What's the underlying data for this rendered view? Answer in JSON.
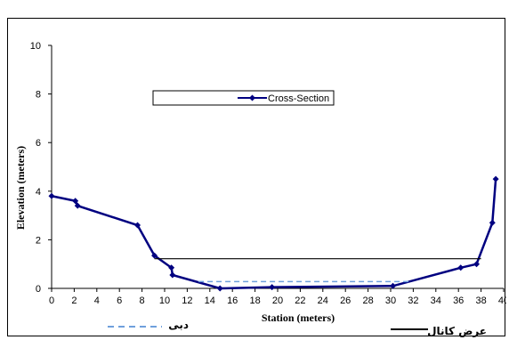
{
  "chart_data": {
    "type": "line",
    "title": "",
    "xlabel": "Station (meters)",
    "ylabel": "Elevation (meters)",
    "xlim": [
      0,
      40
    ],
    "ylim": [
      0,
      10
    ],
    "x_ticks": [
      0,
      2,
      4,
      6,
      8,
      10,
      12,
      14,
      16,
      18,
      20,
      22,
      24,
      26,
      28,
      30,
      32,
      34,
      36,
      38,
      40
    ],
    "y_ticks": [
      0,
      2,
      4,
      6,
      8,
      10
    ],
    "grid": false,
    "series": [
      {
        "name": "Cross-Section",
        "color": "#000080",
        "marker": "diamond",
        "x": [
          0,
          2.1,
          2.3,
          7.6,
          9.1,
          10.6,
          10.7,
          14.9,
          19.5,
          30.2,
          36.2,
          37.6,
          39.0,
          39.3
        ],
        "y": [
          3.8,
          3.6,
          3.4,
          2.6,
          1.35,
          0.85,
          0.55,
          0.0,
          0.05,
          0.1,
          0.85,
          1.0,
          2.7,
          4.5
        ]
      },
      {
        "name": "عرض کانال",
        "color": "#000000",
        "style": "solid",
        "x": [
          9.1,
          38.0
        ],
        "y": [
          1.22,
          1.22
        ]
      },
      {
        "name": "دبی",
        "color": "#6fa0dc",
        "style": "dashed",
        "x": [
          13.0,
          31.8
        ],
        "y": [
          0.28,
          0.28
        ]
      }
    ],
    "legend": {
      "placement": "top-center",
      "entries": [
        "Cross-Section"
      ]
    },
    "bottom_legend": {
      "entries": [
        "دبی",
        "عرض کانال"
      ]
    }
  }
}
